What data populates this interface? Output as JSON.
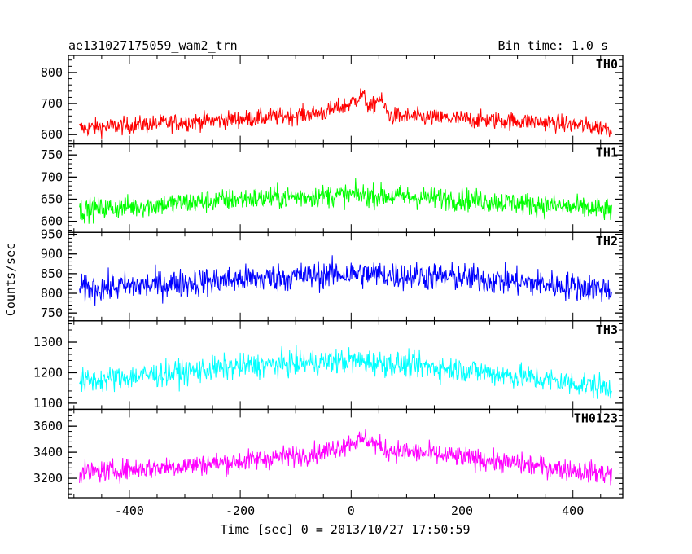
{
  "header": {
    "title": "ae131027175059_wam2_trn",
    "bin_time": "Bin time: 1.0 s"
  },
  "chart_data": {
    "type": "line",
    "xlabel": "Time [sec] 0 = 2013/10/27 17:50:59",
    "ylabel": "Counts/sec",
    "xlim": [
      -510,
      490
    ],
    "x_ticks": [
      -400,
      -200,
      0,
      200,
      400
    ],
    "x_range_data": [
      -490,
      470
    ],
    "bin": 1.0,
    "panels": [
      {
        "name": "TH0",
        "color": "#ff0000",
        "ylim": [
          570,
          855
        ],
        "y_ticks": [
          600,
          700,
          800
        ],
        "baseline": [
          [
            -490,
            620
          ],
          [
            -300,
            640
          ],
          [
            -150,
            655
          ],
          [
            -50,
            670
          ],
          [
            0,
            700
          ],
          [
            20,
            730
          ],
          [
            35,
            680
          ],
          [
            50,
            720
          ],
          [
            70,
            660
          ],
          [
            200,
            650
          ],
          [
            350,
            640
          ],
          [
            470,
            620
          ]
        ],
        "noise": 33
      },
      {
        "name": "TH1",
        "color": "#00ff00",
        "ylim": [
          575,
          775
        ],
        "y_ticks": [
          600,
          650,
          700,
          750
        ],
        "baseline": [
          [
            -490,
            625
          ],
          [
            -200,
            650
          ],
          [
            0,
            660
          ],
          [
            200,
            650
          ],
          [
            470,
            625
          ]
        ],
        "noise": 30
      },
      {
        "name": "TH2",
        "color": "#0000ff",
        "ylim": [
          730,
          955
        ],
        "y_ticks": [
          750,
          800,
          850,
          900,
          950
        ],
        "baseline": [
          [
            -490,
            810
          ],
          [
            -200,
            835
          ],
          [
            0,
            850
          ],
          [
            200,
            840
          ],
          [
            470,
            810
          ]
        ],
        "noise": 42
      },
      {
        "name": "TH3",
        "color": "#00ffff",
        "ylim": [
          1080,
          1370
        ],
        "y_ticks": [
          1100,
          1200,
          1300
        ],
        "baseline": [
          [
            -490,
            1170
          ],
          [
            -200,
            1220
          ],
          [
            0,
            1240
          ],
          [
            200,
            1210
          ],
          [
            470,
            1150
          ]
        ],
        "noise": 48
      },
      {
        "name": "TH0123",
        "color": "#ff00ff",
        "ylim": [
          3050,
          3730
        ],
        "y_ticks": [
          3200,
          3400,
          3600
        ],
        "baseline": [
          [
            -490,
            3240
          ],
          [
            -200,
            3330
          ],
          [
            -50,
            3400
          ],
          [
            0,
            3480
          ],
          [
            30,
            3500
          ],
          [
            60,
            3420
          ],
          [
            200,
            3360
          ],
          [
            470,
            3230
          ]
        ],
        "noise": 95
      }
    ]
  }
}
